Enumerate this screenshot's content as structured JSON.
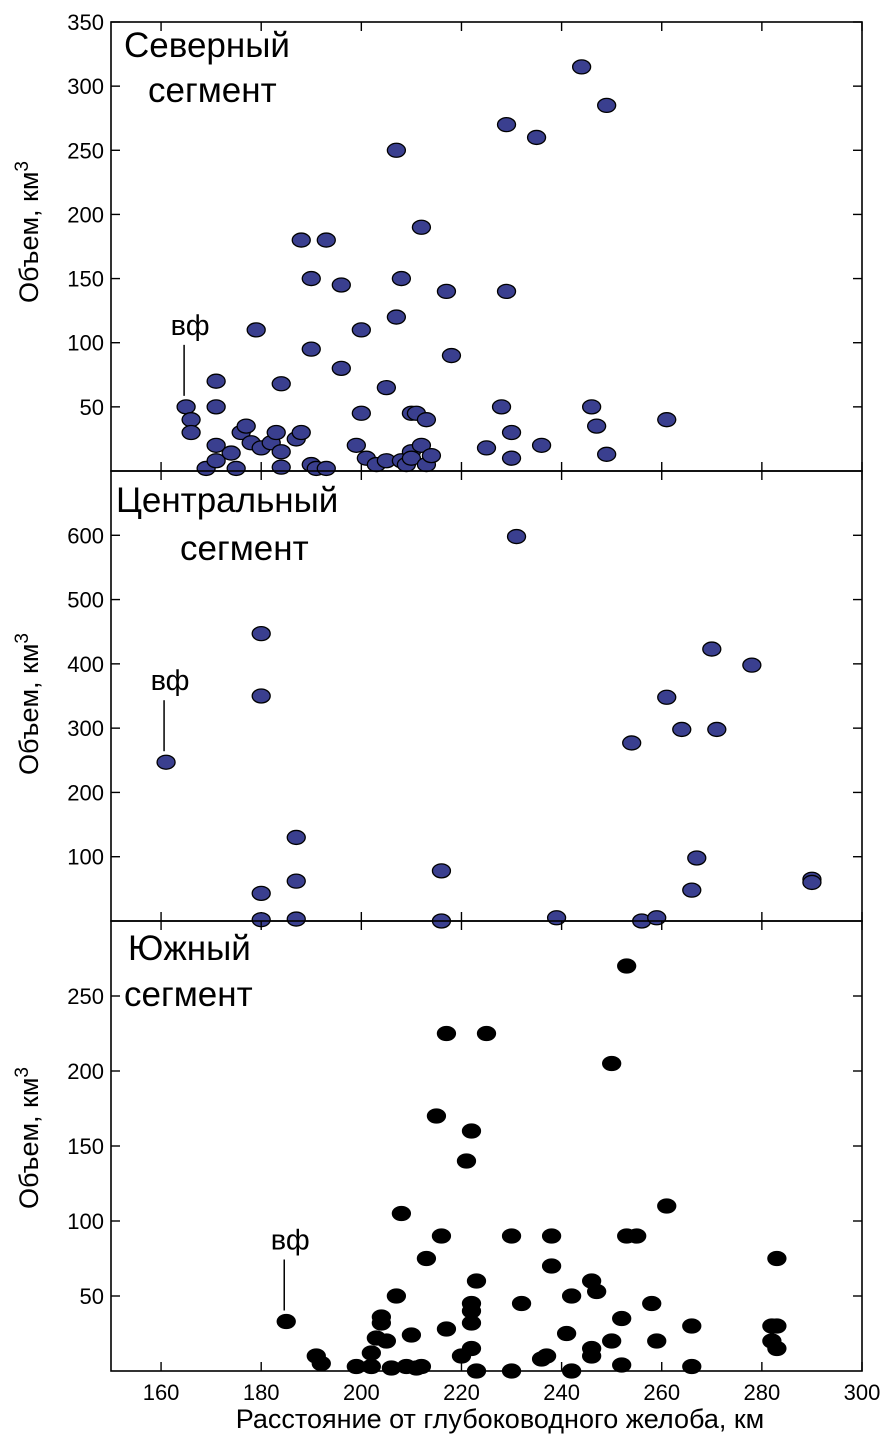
{
  "chart_data": {
    "type": "scatter",
    "xlabel": "Расстояние от глубоководного желоба, км",
    "xlim": [
      150,
      300
    ],
    "xticks": [
      160,
      180,
      200,
      220,
      240,
      260,
      280,
      300
    ],
    "ylabel": "Объем, км",
    "ylabel_sup": "3",
    "panels": [
      {
        "title_lines": [
          "Северный",
          "сегмент"
        ],
        "ylim": [
          0,
          350
        ],
        "yticks": [
          50,
          100,
          150,
          200,
          250,
          300,
          350
        ],
        "point_color": "#3a3f8f",
        "annotation": {
          "text": "вф",
          "x": 165,
          "y": 50
        },
        "points": [
          [
            165,
            50
          ],
          [
            166,
            40
          ],
          [
            166,
            30
          ],
          [
            169,
            2
          ],
          [
            171,
            70
          ],
          [
            171,
            50
          ],
          [
            171,
            20
          ],
          [
            171,
            8
          ],
          [
            174,
            14
          ],
          [
            175,
            2
          ],
          [
            176,
            30
          ],
          [
            177,
            35
          ],
          [
            178,
            22
          ],
          [
            179,
            110
          ],
          [
            180,
            18
          ],
          [
            182,
            22
          ],
          [
            183,
            30
          ],
          [
            184,
            68
          ],
          [
            184,
            15
          ],
          [
            184,
            3
          ],
          [
            187,
            25
          ],
          [
            188,
            30
          ],
          [
            188,
            180
          ],
          [
            190,
            150
          ],
          [
            190,
            95
          ],
          [
            190,
            5
          ],
          [
            191,
            2
          ],
          [
            193,
            180
          ],
          [
            193,
            2
          ],
          [
            196,
            145
          ],
          [
            196,
            80
          ],
          [
            199,
            20
          ],
          [
            200,
            110
          ],
          [
            200,
            45
          ],
          [
            201,
            10
          ],
          [
            203,
            5
          ],
          [
            205,
            65
          ],
          [
            205,
            8
          ],
          [
            207,
            120
          ],
          [
            207,
            250
          ],
          [
            208,
            8
          ],
          [
            208,
            150
          ],
          [
            209,
            5
          ],
          [
            210,
            45
          ],
          [
            210,
            15
          ],
          [
            210,
            10
          ],
          [
            211,
            45
          ],
          [
            212,
            190
          ],
          [
            212,
            20
          ],
          [
            213,
            5
          ],
          [
            213,
            40
          ],
          [
            214,
            12
          ],
          [
            217,
            140
          ],
          [
            218,
            90
          ],
          [
            225,
            18
          ],
          [
            228,
            50
          ],
          [
            229,
            270
          ],
          [
            229,
            140
          ],
          [
            230,
            30
          ],
          [
            230,
            10
          ],
          [
            235,
            260
          ],
          [
            236,
            20
          ],
          [
            244,
            315
          ],
          [
            246,
            50
          ],
          [
            247,
            35
          ],
          [
            249,
            285
          ],
          [
            249,
            13
          ],
          [
            261,
            40
          ]
        ]
      },
      {
        "title_lines": [
          "Центральный",
          "сегмент"
        ],
        "ylim": [
          0,
          700
        ],
        "yticks": [
          100,
          200,
          300,
          400,
          500,
          600
        ],
        "point_color": "#3a3f8f",
        "annotation": {
          "text": "вф",
          "x": 161,
          "y": 247
        },
        "points": [
          [
            161,
            247
          ],
          [
            180,
            447
          ],
          [
            180,
            350
          ],
          [
            180,
            43
          ],
          [
            180,
            2
          ],
          [
            187,
            130
          ],
          [
            187,
            62
          ],
          [
            187,
            3
          ],
          [
            216,
            78
          ],
          [
            216,
            0
          ],
          [
            231,
            598
          ],
          [
            239,
            5
          ],
          [
            254,
            277
          ],
          [
            256,
            0
          ],
          [
            259,
            5
          ],
          [
            261,
            348
          ],
          [
            264,
            298
          ],
          [
            266,
            48
          ],
          [
            267,
            98
          ],
          [
            270,
            423
          ],
          [
            271,
            298
          ],
          [
            278,
            398
          ],
          [
            290,
            65
          ],
          [
            290,
            60
          ]
        ]
      },
      {
        "title_lines": [
          "Южный",
          "сегмент"
        ],
        "ylim": [
          0,
          300
        ],
        "yticks": [
          50,
          100,
          150,
          200,
          250
        ],
        "point_color": "#000000",
        "annotation": {
          "text": "вф",
          "x": 185,
          "y": 33
        },
        "points": [
          [
            185,
            33
          ],
          [
            191,
            10
          ],
          [
            192,
            5
          ],
          [
            199,
            3
          ],
          [
            202,
            12
          ],
          [
            202,
            3
          ],
          [
            203,
            22
          ],
          [
            204,
            36
          ],
          [
            204,
            32
          ],
          [
            205,
            20
          ],
          [
            206,
            2
          ],
          [
            207,
            50
          ],
          [
            208,
            105
          ],
          [
            209,
            3
          ],
          [
            210,
            24
          ],
          [
            211,
            2
          ],
          [
            212,
            3
          ],
          [
            213,
            75
          ],
          [
            215,
            170
          ],
          [
            216,
            90
          ],
          [
            217,
            225
          ],
          [
            217,
            28
          ],
          [
            220,
            10
          ],
          [
            221,
            140
          ],
          [
            222,
            160
          ],
          [
            222,
            45
          ],
          [
            222,
            40
          ],
          [
            222,
            32
          ],
          [
            222,
            15
          ],
          [
            223,
            60
          ],
          [
            223,
            0
          ],
          [
            225,
            225
          ],
          [
            230,
            90
          ],
          [
            230,
            0
          ],
          [
            232,
            45
          ],
          [
            236,
            8
          ],
          [
            237,
            10
          ],
          [
            238,
            90
          ],
          [
            238,
            70
          ],
          [
            241,
            25
          ],
          [
            242,
            50
          ],
          [
            242,
            0
          ],
          [
            246,
            60
          ],
          [
            246,
            15
          ],
          [
            246,
            10
          ],
          [
            247,
            53
          ],
          [
            250,
            205
          ],
          [
            250,
            20
          ],
          [
            252,
            35
          ],
          [
            252,
            4
          ],
          [
            253,
            270
          ],
          [
            253,
            90
          ],
          [
            255,
            90
          ],
          [
            258,
            45
          ],
          [
            259,
            20
          ],
          [
            261,
            110
          ],
          [
            266,
            30
          ],
          [
            266,
            3
          ],
          [
            282,
            30
          ],
          [
            282,
            20
          ],
          [
            283,
            75
          ],
          [
            283,
            30
          ],
          [
            283,
            15
          ]
        ]
      }
    ]
  }
}
